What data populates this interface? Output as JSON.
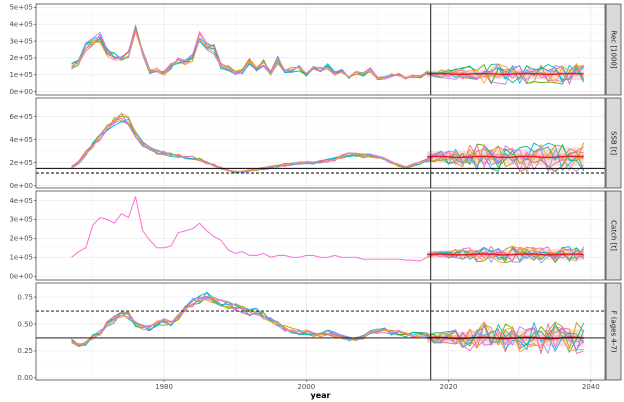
{
  "chart_data": {
    "type": "line",
    "xlabel": "year",
    "xlim": [
      1962,
      2042
    ],
    "x_ticks": [
      "1980",
      "2000",
      "2020",
      "2040"
    ],
    "x_tick_values": [
      1980,
      2000,
      2020,
      2040
    ],
    "vline_year": 2017.5,
    "colors": [
      "#F8766D",
      "#C49A00",
      "#53B400",
      "#00C094",
      "#00B6EB",
      "#A58AFF",
      "#FB61D7",
      "#FF9F40"
    ],
    "ribbon_color": "#fbd0d0",
    "median_color": "#e31a1c",
    "panels": [
      {
        "strip_label": "Rec [1000]",
        "ylim": [
          -20000,
          520000
        ],
        "y_ticks": [
          "0e+00",
          "1e+05",
          "2e+05",
          "3e+05",
          "4e+05",
          "5e+05"
        ],
        "y_tick_values": [
          0,
          100000,
          200000,
          300000,
          400000,
          500000
        ],
        "hist_years": [
          1967,
          1968,
          1969,
          1970,
          1971,
          1972,
          1973,
          1974,
          1975,
          1976,
          1977,
          1978,
          1979,
          1980,
          1981,
          1982,
          1983,
          1984,
          1985,
          1986,
          1987,
          1988,
          1989,
          1990,
          1991,
          1992,
          1993,
          1994,
          1995,
          1996,
          1997,
          1998,
          1999,
          2000,
          2001,
          2002,
          2003,
          2004,
          2005,
          2006,
          2007,
          2008,
          2009,
          2010,
          2011,
          2012,
          2013,
          2014,
          2015,
          2016,
          2017
        ],
        "hist_mean": [
          150000,
          170000,
          270000,
          300000,
          320000,
          230000,
          210000,
          190000,
          220000,
          390000,
          220000,
          120000,
          130000,
          110000,
          150000,
          180000,
          170000,
          200000,
          330000,
          270000,
          250000,
          150000,
          140000,
          110000,
          120000,
          180000,
          130000,
          170000,
          110000,
          190000,
          120000,
          130000,
          140000,
          100000,
          150000,
          130000,
          150000,
          110000,
          120000,
          80000,
          110000,
          100000,
          130000,
          80000,
          80000,
          100000,
          100000,
          80000,
          90000,
          90000,
          110000
        ],
        "hist_spread": 0.12,
        "proj_level": 105000,
        "proj_spread": 0.45,
        "ribbon_halfwidth": 35000,
        "hlines": []
      },
      {
        "strip_label": "SSB [t]",
        "ylim": [
          -20000,
          760000
        ],
        "y_ticks": [
          "0e+00",
          "2e+05",
          "4e+05",
          "6e+05"
        ],
        "y_tick_values": [
          0,
          200000,
          400000,
          600000
        ],
        "hist_years": [
          1967,
          1968,
          1969,
          1970,
          1971,
          1972,
          1973,
          1974,
          1975,
          1976,
          1977,
          1978,
          1979,
          1980,
          1981,
          1982,
          1983,
          1984,
          1985,
          1986,
          1987,
          1988,
          1989,
          1990,
          1991,
          1992,
          1993,
          1994,
          1995,
          1996,
          1997,
          1998,
          1999,
          2000,
          2001,
          2002,
          2003,
          2004,
          2005,
          2006,
          2007,
          2008,
          2009,
          2010,
          2011,
          2012,
          2013,
          2014,
          2015,
          2016,
          2017
        ],
        "hist_mean": [
          160000,
          200000,
          280000,
          350000,
          420000,
          500000,
          560000,
          590000,
          560000,
          440000,
          360000,
          320000,
          290000,
          280000,
          270000,
          260000,
          250000,
          240000,
          230000,
          200000,
          180000,
          150000,
          130000,
          120000,
          120000,
          130000,
          140000,
          150000,
          160000,
          170000,
          180000,
          190000,
          200000,
          200000,
          200000,
          210000,
          220000,
          230000,
          250000,
          270000,
          270000,
          260000,
          260000,
          250000,
          230000,
          200000,
          180000,
          160000,
          180000,
          200000,
          220000
        ],
        "hist_spread": 0.07,
        "proj_level": 250000,
        "proj_spread": 0.4,
        "ribbon_halfwidth": 80000,
        "hlines": [
          {
            "y": 150000,
            "style": "solid"
          },
          {
            "y": 110000,
            "style": "dashed"
          }
        ]
      },
      {
        "strip_label": "Catch [t]",
        "ylim": [
          -20000,
          450000
        ],
        "y_ticks": [
          "0e+00",
          "1e+05",
          "2e+05",
          "3e+05",
          "4e+05"
        ],
        "y_tick_values": [
          0,
          100000,
          200000,
          300000,
          400000
        ],
        "hist_years": [
          1967,
          1968,
          1969,
          1970,
          1971,
          1972,
          1973,
          1974,
          1975,
          1976,
          1977,
          1978,
          1979,
          1980,
          1981,
          1982,
          1983,
          1984,
          1985,
          1986,
          1987,
          1988,
          1989,
          1990,
          1991,
          1992,
          1993,
          1994,
          1995,
          1996,
          1997,
          1998,
          1999,
          2000,
          2001,
          2002,
          2003,
          2004,
          2005,
          2006,
          2007,
          2008,
          2009,
          2010,
          2011,
          2012,
          2013,
          2014,
          2015,
          2016,
          2017
        ],
        "hist_mean": [
          100000,
          130000,
          150000,
          270000,
          310000,
          300000,
          280000,
          330000,
          310000,
          420000,
          240000,
          190000,
          150000,
          150000,
          160000,
          230000,
          240000,
          250000,
          280000,
          240000,
          210000,
          190000,
          140000,
          120000,
          130000,
          110000,
          110000,
          120000,
          100000,
          110000,
          110000,
          100000,
          100000,
          110000,
          110000,
          100000,
          100000,
          110000,
          100000,
          100000,
          100000,
          90000,
          90000,
          90000,
          90000,
          90000,
          90000,
          85000,
          85000,
          80000,
          100000
        ],
        "hist_spread": 0,
        "proj_level": 115000,
        "proj_spread": 0.3,
        "ribbon_halfwidth": 30000,
        "hlines": []
      },
      {
        "strip_label": "F (ages 4-7)",
        "ylim": [
          -0.02,
          0.88
        ],
        "y_ticks": [
          "0.00",
          "0.25",
          "0.50",
          "0.75"
        ],
        "y_tick_values": [
          0,
          0.25,
          0.5,
          0.75
        ],
        "hist_years": [
          1967,
          1968,
          1969,
          1970,
          1971,
          1972,
          1973,
          1974,
          1975,
          1976,
          1977,
          1978,
          1979,
          1980,
          1981,
          1982,
          1983,
          1984,
          1985,
          1986,
          1987,
          1988,
          1989,
          1990,
          1991,
          1992,
          1993,
          1994,
          1995,
          1996,
          1997,
          1998,
          1999,
          2000,
          2001,
          2002,
          2003,
          2004,
          2005,
          2006,
          2007,
          2008,
          2009,
          2010,
          2011,
          2012,
          2013,
          2014,
          2015,
          2016,
          2017
        ],
        "hist_mean": [
          0.34,
          0.3,
          0.32,
          0.38,
          0.42,
          0.5,
          0.54,
          0.58,
          0.58,
          0.5,
          0.48,
          0.46,
          0.5,
          0.52,
          0.5,
          0.56,
          0.65,
          0.7,
          0.73,
          0.75,
          0.72,
          0.7,
          0.68,
          0.66,
          0.64,
          0.6,
          0.62,
          0.58,
          0.54,
          0.5,
          0.46,
          0.44,
          0.42,
          0.42,
          0.4,
          0.4,
          0.42,
          0.4,
          0.38,
          0.36,
          0.36,
          0.38,
          0.42,
          0.43,
          0.44,
          0.42,
          0.42,
          0.4,
          0.4,
          0.4,
          0.4
        ],
        "hist_spread": 0.06,
        "proj_level": 0.37,
        "proj_spread": 0.32,
        "ribbon_halfwidth": 0.08,
        "hlines": [
          {
            "y": 0.62,
            "style": "dashed"
          },
          {
            "y": 0.37,
            "style": "solid"
          }
        ]
      }
    ]
  }
}
